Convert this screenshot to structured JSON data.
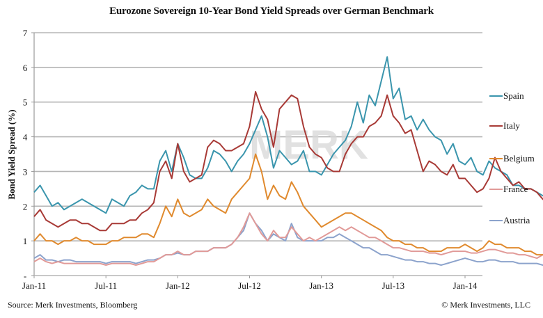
{
  "title": "Eurozone Sovereign 10-Year Bond Yield Spreads over German Benchmark",
  "footer": {
    "source": "Source: Merk Investments, Bloomberg",
    "copyright": "© Merk Investments, LLC"
  },
  "watermark": "MERK",
  "chart_data": {
    "type": "line",
    "title": "Eurozone Sovereign 10-Year Bond Yield Spreads over German Benchmark",
    "xlabel": "",
    "ylabel": "Bond Yield Spread (%)",
    "x_units": "months since Jan-2011 (semi-monthly samples)",
    "xlim": [
      0,
      38.5
    ],
    "ylim": [
      0,
      7
    ],
    "yticks": [
      {
        "value": 0,
        "label": "-"
      },
      {
        "value": 1,
        "label": "1"
      },
      {
        "value": 2,
        "label": "2"
      },
      {
        "value": 3,
        "label": "3"
      },
      {
        "value": 4,
        "label": "4"
      },
      {
        "value": 5,
        "label": "5"
      },
      {
        "value": 6,
        "label": "6"
      },
      {
        "value": 7,
        "label": "7"
      }
    ],
    "xticks": [
      {
        "value": 0,
        "label": "Jan-11"
      },
      {
        "value": 6,
        "label": "Jul-11"
      },
      {
        "value": 12,
        "label": "Jan-12"
      },
      {
        "value": 18,
        "label": "Jul-12"
      },
      {
        "value": 24,
        "label": "Jan-13"
      },
      {
        "value": 30,
        "label": "Jul-13"
      },
      {
        "value": 36,
        "label": "Jan-14"
      }
    ],
    "grid": true,
    "legend": "right",
    "x_step": 0.5,
    "series": [
      {
        "name": "Spain",
        "color": "#3a95ad",
        "values": [
          2.4,
          2.6,
          2.3,
          2.0,
          2.1,
          1.9,
          2.0,
          2.1,
          2.2,
          2.1,
          2.0,
          1.9,
          1.8,
          2.2,
          2.1,
          2.0,
          2.3,
          2.4,
          2.6,
          2.5,
          2.5,
          3.3,
          3.6,
          3.0,
          3.8,
          3.4,
          2.9,
          2.8,
          2.8,
          3.1,
          3.6,
          3.5,
          3.3,
          3.0,
          3.3,
          3.5,
          3.8,
          4.2,
          4.6,
          4.0,
          3.1,
          3.6,
          3.4,
          3.2,
          3.3,
          3.6,
          3.0,
          3.0,
          2.9,
          3.2,
          3.5,
          3.7,
          3.9,
          4.3,
          5.0,
          4.4,
          5.2,
          4.9,
          5.6,
          6.3,
          5.1,
          5.4,
          4.5,
          4.6,
          4.2,
          4.5,
          4.2,
          4.0,
          3.9,
          3.5,
          3.8,
          3.3,
          3.2,
          3.4,
          3.0,
          2.9,
          3.3,
          3.1,
          3.0,
          2.9,
          2.6,
          2.6,
          2.5,
          2.5,
          2.4,
          2.3,
          2.3,
          2.0,
          2.1,
          2.0,
          1.9
        ]
      },
      {
        "name": "Italy",
        "color": "#a83a36",
        "values": [
          1.7,
          1.9,
          1.6,
          1.5,
          1.4,
          1.5,
          1.6,
          1.6,
          1.5,
          1.5,
          1.4,
          1.3,
          1.3,
          1.5,
          1.5,
          1.5,
          1.6,
          1.6,
          1.8,
          1.9,
          2.1,
          3.0,
          3.3,
          2.8,
          3.8,
          3.0,
          2.7,
          2.8,
          2.9,
          3.7,
          3.9,
          3.8,
          3.6,
          3.6,
          3.7,
          3.8,
          4.3,
          5.3,
          4.8,
          4.5,
          3.7,
          4.8,
          5.0,
          5.2,
          5.1,
          4.3,
          3.7,
          3.5,
          3.4,
          3.1,
          3.0,
          3.0,
          3.5,
          3.8,
          4.0,
          4.0,
          4.3,
          4.4,
          4.6,
          5.2,
          4.6,
          4.4,
          4.1,
          4.2,
          3.6,
          3.0,
          3.3,
          3.2,
          3.0,
          2.9,
          3.2,
          2.8,
          2.8,
          2.6,
          2.4,
          2.5,
          2.8,
          3.4,
          3.0,
          2.8,
          2.6,
          2.7,
          2.5,
          2.5,
          2.4,
          2.2,
          2.1,
          2.1,
          2.1,
          2.0,
          2.0
        ]
      },
      {
        "name": "Belgium",
        "color": "#e08a2e",
        "values": [
          1.0,
          1.2,
          1.0,
          1.0,
          0.9,
          1.0,
          1.0,
          1.1,
          1.0,
          1.0,
          0.9,
          0.9,
          0.9,
          1.0,
          1.0,
          1.1,
          1.1,
          1.1,
          1.2,
          1.2,
          1.1,
          1.5,
          2.0,
          1.7,
          2.2,
          1.8,
          1.7,
          1.8,
          1.9,
          2.2,
          2.0,
          1.9,
          1.8,
          2.2,
          2.4,
          2.6,
          2.8,
          3.5,
          3.0,
          2.2,
          2.6,
          2.3,
          2.2,
          2.7,
          2.4,
          2.0,
          1.8,
          1.6,
          1.4,
          1.5,
          1.6,
          1.7,
          1.8,
          1.8,
          1.7,
          1.6,
          1.5,
          1.4,
          1.3,
          1.1,
          1.0,
          1.0,
          0.9,
          0.9,
          0.8,
          0.8,
          0.7,
          0.7,
          0.7,
          0.8,
          0.8,
          0.8,
          0.9,
          0.8,
          0.7,
          0.8,
          1.0,
          0.9,
          0.9,
          0.8,
          0.8,
          0.8,
          0.7,
          0.7,
          0.6,
          0.6,
          0.6,
          0.6,
          0.7,
          0.7,
          0.7
        ]
      },
      {
        "name": "France",
        "color": "#e19a98",
        "values": [
          0.4,
          0.5,
          0.4,
          0.35,
          0.4,
          0.35,
          0.35,
          0.35,
          0.35,
          0.35,
          0.35,
          0.35,
          0.3,
          0.35,
          0.35,
          0.35,
          0.35,
          0.3,
          0.35,
          0.4,
          0.4,
          0.5,
          0.6,
          0.6,
          0.7,
          0.6,
          0.6,
          0.7,
          0.7,
          0.7,
          0.8,
          0.8,
          0.8,
          0.9,
          1.1,
          1.4,
          1.8,
          1.5,
          1.2,
          1.0,
          1.3,
          1.1,
          1.1,
          1.4,
          1.2,
          1.0,
          1.1,
          1.0,
          1.1,
          1.2,
          1.3,
          1.4,
          1.3,
          1.4,
          1.3,
          1.2,
          1.1,
          1.1,
          1.0,
          0.9,
          0.8,
          0.8,
          0.75,
          0.7,
          0.7,
          0.7,
          0.65,
          0.65,
          0.6,
          0.65,
          0.7,
          0.7,
          0.7,
          0.65,
          0.65,
          0.7,
          0.75,
          0.75,
          0.7,
          0.65,
          0.65,
          0.6,
          0.6,
          0.55,
          0.5,
          0.6,
          0.6,
          0.6,
          0.65,
          0.6,
          0.6
        ]
      },
      {
        "name": "Austria",
        "color": "#8ca3cc",
        "values": [
          0.5,
          0.6,
          0.45,
          0.45,
          0.4,
          0.45,
          0.45,
          0.4,
          0.4,
          0.4,
          0.4,
          0.4,
          0.35,
          0.4,
          0.4,
          0.4,
          0.4,
          0.35,
          0.4,
          0.45,
          0.45,
          0.5,
          0.6,
          0.6,
          0.65,
          0.6,
          0.6,
          0.7,
          0.7,
          0.7,
          0.8,
          0.8,
          0.8,
          0.9,
          1.1,
          1.3,
          1.8,
          1.5,
          1.3,
          1.0,
          1.2,
          1.1,
          1.0,
          1.5,
          1.1,
          1.0,
          1.0,
          1.0,
          1.0,
          1.1,
          1.1,
          1.2,
          1.1,
          1.0,
          0.9,
          0.8,
          0.8,
          0.7,
          0.6,
          0.6,
          0.55,
          0.5,
          0.45,
          0.45,
          0.4,
          0.4,
          0.35,
          0.35,
          0.3,
          0.35,
          0.4,
          0.45,
          0.5,
          0.45,
          0.4,
          0.4,
          0.45,
          0.45,
          0.4,
          0.4,
          0.4,
          0.35,
          0.35,
          0.35,
          0.35,
          0.3,
          0.3,
          0.3,
          0.35,
          0.3,
          0.3
        ]
      }
    ]
  }
}
